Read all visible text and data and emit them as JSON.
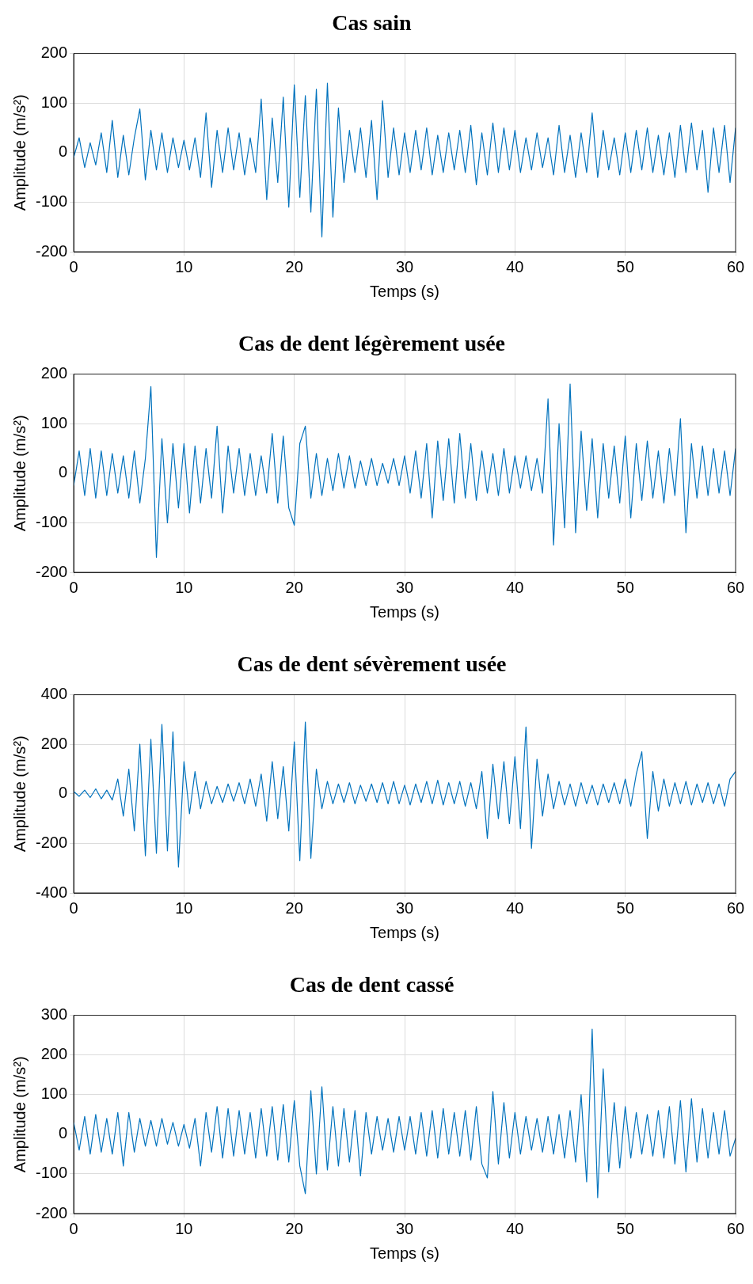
{
  "chart_data": [
    {
      "type": "line",
      "title": "Cas sain",
      "xlabel": "Temps (s)",
      "ylabel": "Amplitude (m/s²)",
      "xlim": [
        0,
        60
      ],
      "xticks": [
        0,
        10,
        20,
        30,
        40,
        50,
        60
      ],
      "ylim": [
        -200,
        200
      ],
      "yticks": [
        -200,
        -100,
        0,
        100,
        200
      ],
      "grid": true,
      "x": [
        0,
        0.5,
        1,
        1.5,
        2,
        2.5,
        3,
        3.5,
        4,
        4.5,
        5,
        5.5,
        6,
        6.5,
        7,
        7.5,
        8,
        8.5,
        9,
        9.5,
        10,
        10.5,
        11,
        11.5,
        12,
        12.5,
        13,
        13.5,
        14,
        14.5,
        15,
        15.5,
        16,
        16.5,
        17,
        17.5,
        18,
        18.5,
        19,
        19.5,
        20,
        20.5,
        21,
        21.5,
        22,
        22.5,
        23,
        23.5,
        24,
        24.5,
        25,
        25.5,
        26,
        26.5,
        27,
        27.5,
        28,
        28.5,
        29,
        29.5,
        30,
        30.5,
        31,
        31.5,
        32,
        32.5,
        33,
        33.5,
        34,
        34.5,
        35,
        35.5,
        36,
        36.5,
        37,
        37.5,
        38,
        38.5,
        39,
        39.5,
        40,
        40.5,
        41,
        41.5,
        42,
        42.5,
        43,
        43.5,
        44,
        44.5,
        45,
        45.5,
        46,
        46.5,
        47,
        47.5,
        48,
        48.5,
        49,
        49.5,
        50,
        50.5,
        51,
        51.5,
        52,
        52.5,
        53,
        53.5,
        54,
        54.5,
        55,
        55.5,
        56,
        56.5,
        57,
        57.5,
        58,
        58.5,
        59,
        59.5,
        60
      ],
      "series": [
        {
          "color": "#0072bd",
          "values": [
            -10,
            30,
            -30,
            20,
            -25,
            40,
            -40,
            65,
            -50,
            35,
            -45,
            30,
            88,
            -55,
            45,
            -35,
            40,
            -40,
            30,
            -30,
            25,
            -35,
            30,
            -50,
            80,
            -70,
            45,
            -40,
            50,
            -35,
            40,
            -45,
            30,
            -40,
            108,
            -95,
            70,
            -60,
            112,
            -110,
            137,
            -90,
            115,
            -120,
            128,
            -170,
            140,
            -130,
            90,
            -60,
            45,
            -40,
            50,
            -50,
            65,
            -95,
            105,
            -50,
            50,
            -45,
            40,
            -40,
            45,
            -35,
            50,
            -45,
            35,
            -40,
            40,
            -35,
            45,
            -40,
            55,
            -65,
            40,
            -45,
            60,
            -40,
            50,
            -35,
            45,
            -40,
            30,
            -35,
            40,
            -30,
            30,
            -45,
            55,
            -40,
            35,
            -50,
            40,
            -40,
            80,
            -50,
            45,
            -35,
            30,
            -45,
            40,
            -40,
            45,
            -35,
            50,
            -40,
            35,
            -45,
            40,
            -50,
            55,
            -40,
            60,
            -35,
            45,
            -80,
            50,
            -40,
            55,
            -60,
            50
          ]
        }
      ]
    },
    {
      "type": "line",
      "title": "Cas de dent légèrement usée",
      "xlabel": "Temps (s)",
      "ylabel": "Amplitude (m/s²)",
      "xlim": [
        0,
        60
      ],
      "xticks": [
        0,
        10,
        20,
        30,
        40,
        50,
        60
      ],
      "ylim": [
        -200,
        200
      ],
      "yticks": [
        -200,
        -100,
        0,
        100,
        200
      ],
      "grid": true,
      "x": [
        0,
        0.5,
        1,
        1.5,
        2,
        2.5,
        3,
        3.5,
        4,
        4.5,
        5,
        5.5,
        6,
        6.5,
        7,
        7.5,
        8,
        8.5,
        9,
        9.5,
        10,
        10.5,
        11,
        11.5,
        12,
        12.5,
        13,
        13.5,
        14,
        14.5,
        15,
        15.5,
        16,
        16.5,
        17,
        17.5,
        18,
        18.5,
        19,
        19.5,
        20,
        20.5,
        21,
        21.5,
        22,
        22.5,
        23,
        23.5,
        24,
        24.5,
        25,
        25.5,
        26,
        26.5,
        27,
        27.5,
        28,
        28.5,
        29,
        29.5,
        30,
        30.5,
        31,
        31.5,
        32,
        32.5,
        33,
        33.5,
        34,
        34.5,
        35,
        35.5,
        36,
        36.5,
        37,
        37.5,
        38,
        38.5,
        39,
        39.5,
        40,
        40.5,
        41,
        41.5,
        42,
        42.5,
        43,
        43.5,
        44,
        44.5,
        45,
        45.5,
        46,
        46.5,
        47,
        47.5,
        48,
        48.5,
        49,
        49.5,
        50,
        50.5,
        51,
        51.5,
        52,
        52.5,
        53,
        53.5,
        54,
        54.5,
        55,
        55.5,
        56,
        56.5,
        57,
        57.5,
        58,
        58.5,
        59,
        59.5,
        60
      ],
      "series": [
        {
          "color": "#0072bd",
          "values": [
            -25,
            45,
            -45,
            50,
            -50,
            45,
            -45,
            40,
            -40,
            35,
            -50,
            45,
            -60,
            30,
            175,
            -170,
            70,
            -100,
            60,
            -70,
            60,
            -80,
            55,
            -60,
            50,
            -50,
            95,
            -80,
            55,
            -40,
            50,
            -45,
            40,
            -45,
            35,
            -40,
            80,
            -60,
            75,
            -70,
            -105,
            60,
            95,
            -50,
            40,
            -45,
            30,
            -35,
            40,
            -30,
            35,
            -30,
            25,
            -25,
            30,
            -25,
            20,
            -20,
            30,
            -25,
            35,
            -40,
            45,
            -50,
            60,
            -90,
            65,
            -55,
            70,
            -60,
            80,
            -50,
            60,
            -55,
            45,
            -40,
            40,
            -45,
            50,
            -40,
            35,
            -30,
            35,
            -35,
            30,
            -40,
            150,
            -145,
            100,
            -110,
            180,
            -120,
            85,
            -75,
            70,
            -90,
            60,
            -50,
            55,
            -60,
            75,
            -90,
            60,
            -55,
            65,
            -50,
            45,
            -60,
            50,
            -45,
            110,
            -120,
            60,
            -50,
            55,
            -45,
            50,
            -40,
            45,
            -45,
            50
          ]
        }
      ]
    },
    {
      "type": "line",
      "title": "Cas de dent sévèrement usée",
      "xlabel": "Temps (s)",
      "ylabel": "Amplitude (m/s²)",
      "xlim": [
        0,
        60
      ],
      "xticks": [
        0,
        10,
        20,
        30,
        40,
        50,
        60
      ],
      "ylim": [
        -400,
        400
      ],
      "yticks": [
        -400,
        -200,
        0,
        200,
        400
      ],
      "grid": true,
      "x": [
        0,
        0.5,
        1,
        1.5,
        2,
        2.5,
        3,
        3.5,
        4,
        4.5,
        5,
        5.5,
        6,
        6.5,
        7,
        7.5,
        8,
        8.5,
        9,
        9.5,
        10,
        10.5,
        11,
        11.5,
        12,
        12.5,
        13,
        13.5,
        14,
        14.5,
        15,
        15.5,
        16,
        16.5,
        17,
        17.5,
        18,
        18.5,
        19,
        19.5,
        20,
        20.5,
        21,
        21.5,
        22,
        22.5,
        23,
        23.5,
        24,
        24.5,
        25,
        25.5,
        26,
        26.5,
        27,
        27.5,
        28,
        28.5,
        29,
        29.5,
        30,
        30.5,
        31,
        31.5,
        32,
        32.5,
        33,
        33.5,
        34,
        34.5,
        35,
        35.5,
        36,
        36.5,
        37,
        37.5,
        38,
        38.5,
        39,
        39.5,
        40,
        40.5,
        41,
        41.5,
        42,
        42.5,
        43,
        43.5,
        44,
        44.5,
        45,
        45.5,
        46,
        46.5,
        47,
        47.5,
        48,
        48.5,
        49,
        49.5,
        50,
        50.5,
        51,
        51.5,
        52,
        52.5,
        53,
        53.5,
        54,
        54.5,
        55,
        55.5,
        56,
        56.5,
        57,
        57.5,
        58,
        58.5,
        59,
        59.5,
        60
      ],
      "series": [
        {
          "color": "#0072bd",
          "values": [
            10,
            -10,
            15,
            -15,
            20,
            -20,
            15,
            -25,
            60,
            -90,
            100,
            -150,
            200,
            -250,
            220,
            -240,
            280,
            -230,
            250,
            -295,
            130,
            -80,
            90,
            -60,
            50,
            -40,
            30,
            -35,
            40,
            -30,
            45,
            -40,
            60,
            -50,
            80,
            -110,
            130,
            -100,
            110,
            -150,
            210,
            -270,
            290,
            -260,
            100,
            -60,
            50,
            -40,
            40,
            -35,
            45,
            -40,
            35,
            -30,
            40,
            -35,
            45,
            -40,
            50,
            -40,
            35,
            -45,
            40,
            -35,
            50,
            -40,
            55,
            -45,
            45,
            -40,
            50,
            -50,
            45,
            -60,
            90,
            -180,
            120,
            -100,
            130,
            -120,
            150,
            -140,
            270,
            -220,
            140,
            -90,
            80,
            -60,
            50,
            -45,
            40,
            -50,
            45,
            -40,
            35,
            -45,
            40,
            -35,
            45,
            -40,
            60,
            -50,
            80,
            170,
            -180,
            90,
            -70,
            60,
            -50,
            45,
            -40,
            50,
            -45,
            40,
            -35,
            45,
            -40,
            40,
            -50,
            60,
            90
          ]
        }
      ]
    },
    {
      "type": "line",
      "title": "Cas de dent cassé",
      "xlabel": "Temps (s)",
      "ylabel": "Amplitude (m/s²)",
      "xlim": [
        0,
        60
      ],
      "xticks": [
        0,
        10,
        20,
        30,
        40,
        50,
        60
      ],
      "ylim": [
        -200,
        300
      ],
      "yticks": [
        -200,
        -100,
        0,
        100,
        200,
        300
      ],
      "grid": true,
      "x": [
        0,
        0.5,
        1,
        1.5,
        2,
        2.5,
        3,
        3.5,
        4,
        4.5,
        5,
        5.5,
        6,
        6.5,
        7,
        7.5,
        8,
        8.5,
        9,
        9.5,
        10,
        10.5,
        11,
        11.5,
        12,
        12.5,
        13,
        13.5,
        14,
        14.5,
        15,
        15.5,
        16,
        16.5,
        17,
        17.5,
        18,
        18.5,
        19,
        19.5,
        20,
        20.5,
        21,
        21.5,
        22,
        22.5,
        23,
        23.5,
        24,
        24.5,
        25,
        25.5,
        26,
        26.5,
        27,
        27.5,
        28,
        28.5,
        29,
        29.5,
        30,
        30.5,
        31,
        31.5,
        32,
        32.5,
        33,
        33.5,
        34,
        34.5,
        35,
        35.5,
        36,
        36.5,
        37,
        37.5,
        38,
        38.5,
        39,
        39.5,
        40,
        40.5,
        41,
        41.5,
        42,
        42.5,
        43,
        43.5,
        44,
        44.5,
        45,
        45.5,
        46,
        46.5,
        47,
        47.5,
        48,
        48.5,
        49,
        49.5,
        50,
        50.5,
        51,
        51.5,
        52,
        52.5,
        53,
        53.5,
        54,
        54.5,
        55,
        55.5,
        56,
        56.5,
        57,
        57.5,
        58,
        58.5,
        59,
        59.5,
        60
      ],
      "series": [
        {
          "color": "#0072bd",
          "values": [
            30,
            -40,
            45,
            -50,
            50,
            -45,
            40,
            -50,
            55,
            -80,
            55,
            -45,
            40,
            -30,
            35,
            -30,
            40,
            -25,
            30,
            -30,
            25,
            -35,
            40,
            -80,
            55,
            -45,
            70,
            -60,
            65,
            -55,
            60,
            -50,
            55,
            -60,
            65,
            -55,
            70,
            -65,
            75,
            -70,
            85,
            -80,
            -150,
            110,
            -100,
            120,
            -90,
            70,
            -80,
            65,
            -70,
            60,
            -105,
            55,
            -50,
            45,
            -40,
            40,
            -45,
            45,
            -40,
            45,
            -50,
            55,
            -55,
            60,
            -60,
            65,
            -50,
            55,
            -55,
            60,
            -65,
            70,
            -75,
            -110,
            108,
            -75,
            80,
            -60,
            55,
            -50,
            45,
            -40,
            40,
            -45,
            45,
            -50,
            50,
            -60,
            60,
            -70,
            100,
            -120,
            265,
            -160,
            165,
            -95,
            80,
            -85,
            70,
            -60,
            55,
            -50,
            50,
            -55,
            60,
            -60,
            70,
            -75,
            85,
            -95,
            90,
            -70,
            65,
            -60,
            55,
            -50,
            60,
            -55,
            -10
          ]
        }
      ]
    }
  ]
}
